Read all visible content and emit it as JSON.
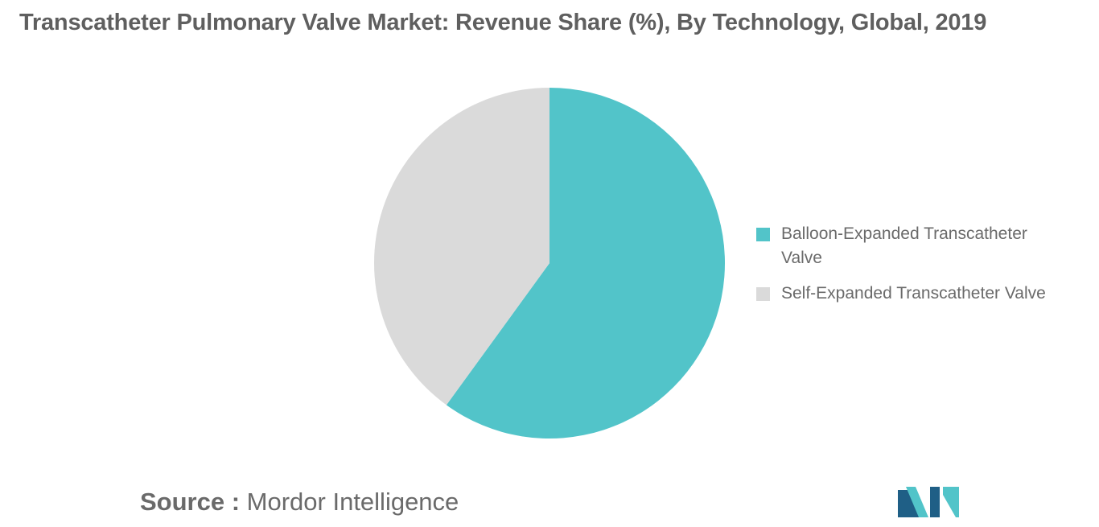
{
  "title": "Transcatheter Pulmonary Valve Market: Revenue Share (%), By Technology, Global, 2019",
  "source": {
    "label": "Source :",
    "text": "Mordor Intelligence"
  },
  "chart_data": {
    "type": "pie",
    "title": "Transcatheter Pulmonary Valve Market: Revenue Share (%), By Technology, Global, 2019",
    "slices": [
      {
        "label": "Balloon-Expanded Transcatheter Valve",
        "value": 60,
        "color": "#52c4c9"
      },
      {
        "label": "Self-Expanded Transcatheter Valve",
        "value": 40,
        "color": "#dadada"
      }
    ],
    "legend_position": "right",
    "start_angle": "12 o'clock",
    "direction": "clockwise"
  },
  "logo": {
    "colors": [
      "#1f5f86",
      "#52c4c9"
    ]
  }
}
